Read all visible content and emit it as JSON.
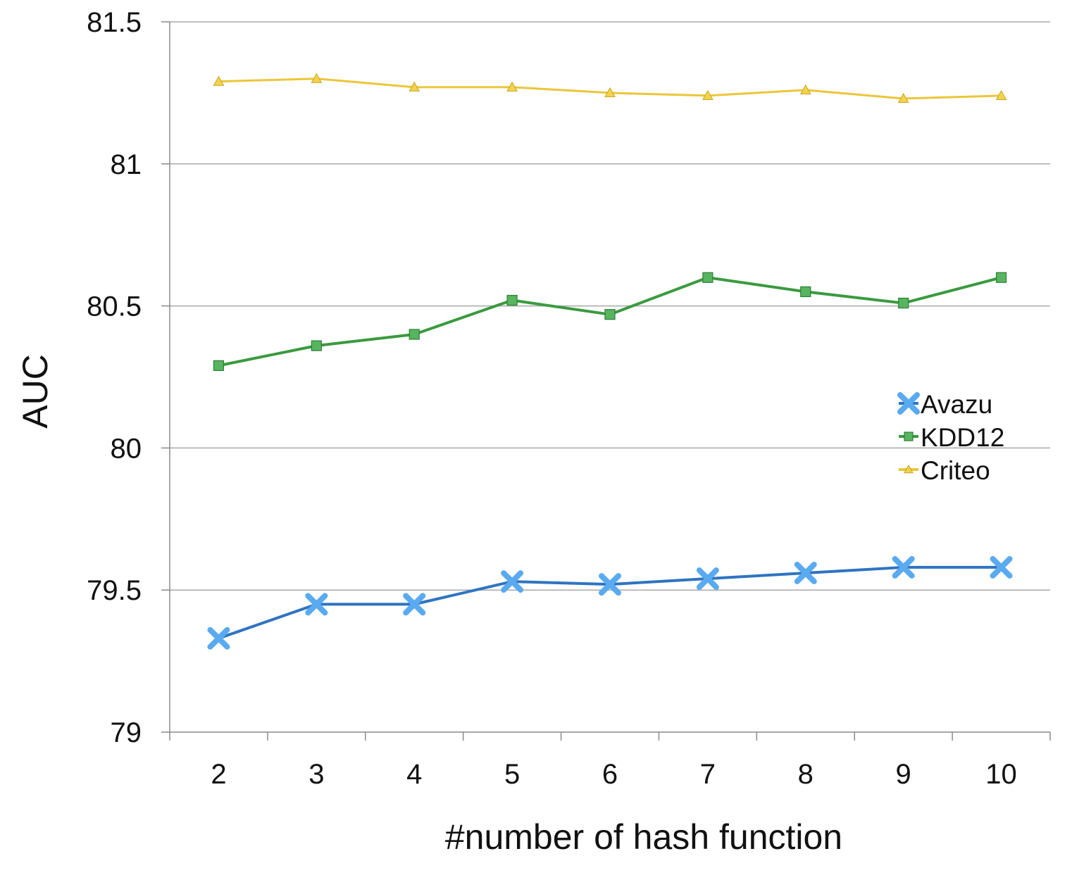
{
  "chart_data": {
    "type": "line",
    "title": "",
    "xlabel": "#number of hash function",
    "ylabel": "AUC",
    "categories": [
      "2",
      "3",
      "4",
      "5",
      "6",
      "7",
      "8",
      "9",
      "10"
    ],
    "ylim": [
      79,
      81.5
    ],
    "yticks": [
      "79",
      "79.5",
      "80",
      "80.5",
      "81",
      "81.5"
    ],
    "grid": true,
    "legend_position": "right",
    "series": [
      {
        "name": "Avazu",
        "marker": "x",
        "line_color": "#2f74c0",
        "marker_color": "#5aaaf0",
        "values": [
          79.33,
          79.45,
          79.45,
          79.53,
          79.52,
          79.54,
          79.56,
          79.58,
          79.58
        ]
      },
      {
        "name": "KDD12",
        "marker": "square",
        "line_color": "#3a9a3f",
        "marker_color": "#57b560",
        "values": [
          80.29,
          80.36,
          80.4,
          80.52,
          80.47,
          80.6,
          80.55,
          80.51,
          80.6
        ]
      },
      {
        "name": "Criteo",
        "marker": "triangle",
        "line_color": "#ebc638",
        "marker_color": "#f2d34a",
        "values": [
          81.29,
          81.3,
          81.27,
          81.27,
          81.25,
          81.24,
          81.26,
          81.23,
          81.24
        ]
      }
    ]
  }
}
